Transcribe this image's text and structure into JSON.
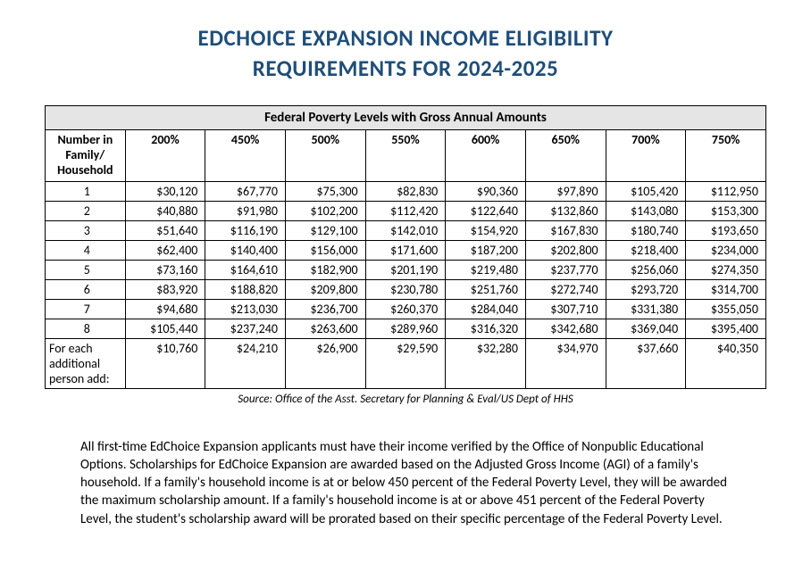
{
  "title_color": "#1f4e79",
  "title_line1": "EDCHOICE EXPANSION INCOME ELIGIBILITY",
  "title_line2": "REQUIREMENTS FOR 2024-2025",
  "table": {
    "caption": "Federal Poverty Levels with Gross Annual Amounts",
    "first_col_header": "Number in Family/ Household",
    "percent_headers": [
      "200%",
      "450%",
      "500%",
      "550%",
      "600%",
      "650%",
      "700%",
      "750%"
    ],
    "rows": [
      {
        "label": "1",
        "values": [
          "$30,120",
          "$67,770",
          "$75,300",
          "$82,830",
          "$90,360",
          "$97,890",
          "$105,420",
          "$112,950"
        ]
      },
      {
        "label": "2",
        "values": [
          "$40,880",
          "$91,980",
          "$102,200",
          "$112,420",
          "$122,640",
          "$132,860",
          "$143,080",
          "$153,300"
        ]
      },
      {
        "label": "3",
        "values": [
          "$51,640",
          "$116,190",
          "$129,100",
          "$142,010",
          "$154,920",
          "$167,830",
          "$180,740",
          "$193,650"
        ]
      },
      {
        "label": "4",
        "values": [
          "$62,400",
          "$140,400",
          "$156,000",
          "$171,600",
          "$187,200",
          "$202,800",
          "$218,400",
          "$234,000"
        ]
      },
      {
        "label": "5",
        "values": [
          "$73,160",
          "$164,610",
          "$182,900",
          "$201,190",
          "$219,480",
          "$237,770",
          "$256,060",
          "$274,350"
        ]
      },
      {
        "label": "6",
        "values": [
          "$83,920",
          "$188,820",
          "$209,800",
          "$230,780",
          "$251,760",
          "$272,740",
          "$293,720",
          "$314,700"
        ]
      },
      {
        "label": "7",
        "values": [
          "$94,680",
          "$213,030",
          "$236,700",
          "$260,370",
          "$284,040",
          "$307,710",
          "$331,380",
          "$355,050"
        ]
      },
      {
        "label": "8",
        "values": [
          "$105,440",
          "$237,240",
          "$263,600",
          "$289,960",
          "$316,320",
          "$342,680",
          "$369,040",
          "$395,400"
        ]
      }
    ],
    "additional_row": {
      "label": "For each additional person add:",
      "values": [
        "$10,760",
        "$24,210",
        "$26,900",
        "$29,590",
        "$32,280",
        "$34,970",
        "$37,660",
        "$40,350"
      ]
    }
  },
  "source_text": "Source: Office of the Asst. Secretary for Planning & Eval/US Dept of HHS",
  "body_paragraph": "All first-time EdChoice Expansion applicants must have their income verified by the Office of Nonpublic Educational Options.  Scholarships for EdChoice Expansion are awarded based on the Adjusted Gross Income (AGI) of a family's household. If a family's household income is at or below 450 percent of the Federal Poverty Level, they will be awarded the maximum scholarship amount. If a family's household income is at or above 451 percent of the Federal Poverty Level, the student's scholarship award will be prorated based on their specific percentage of the Federal Poverty Level."
}
